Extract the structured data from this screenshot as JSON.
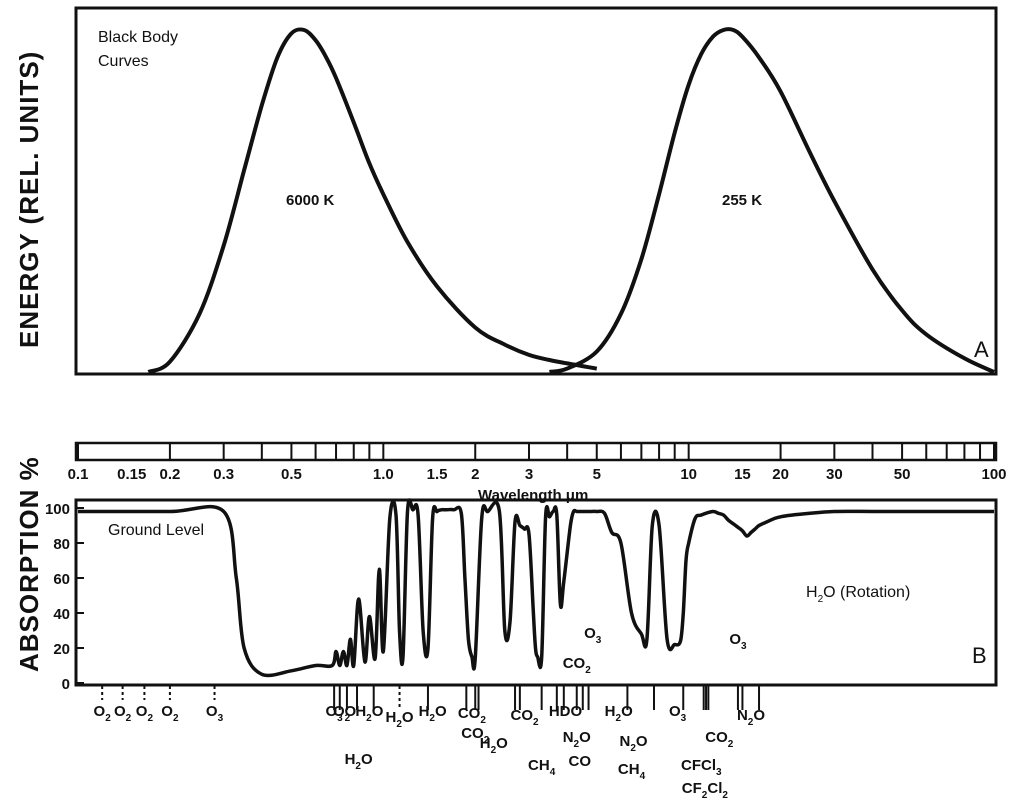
{
  "chart_data": [
    {
      "type": "line",
      "panel_label": "A",
      "ylabel": "ENERGY (REL. UNITS)",
      "annotation_lines": [
        "Black Body",
        "Curves"
      ],
      "x_scale": "log",
      "xlim": [
        0.1,
        100
      ],
      "ylim": [
        0,
        1
      ],
      "series": [
        {
          "name": "6000 K",
          "x": [
            0.17,
            0.2,
            0.25,
            0.3,
            0.35,
            0.4,
            0.45,
            0.5,
            0.55,
            0.6,
            0.65,
            0.7,
            0.8,
            0.9,
            1.0,
            1.2,
            1.5,
            2.0,
            2.5,
            3.0,
            3.5,
            4.0,
            5.0
          ],
          "y": [
            0.0,
            0.03,
            0.17,
            0.37,
            0.59,
            0.78,
            0.92,
            0.99,
            1.0,
            0.97,
            0.92,
            0.86,
            0.73,
            0.61,
            0.52,
            0.38,
            0.25,
            0.13,
            0.08,
            0.05,
            0.035,
            0.025,
            0.01
          ]
        },
        {
          "name": "255 K",
          "x": [
            3.5,
            4.0,
            5.0,
            6.0,
            7.0,
            8.0,
            9.0,
            10.0,
            11.0,
            12.0,
            13.0,
            14.0,
            15.0,
            17.0,
            20.0,
            25.0,
            30.0,
            40.0,
            50.0,
            60.0,
            80.0,
            100.0
          ],
          "y": [
            0.0,
            0.01,
            0.06,
            0.17,
            0.33,
            0.52,
            0.7,
            0.84,
            0.93,
            0.98,
            1.0,
            1.0,
            0.98,
            0.92,
            0.82,
            0.64,
            0.5,
            0.3,
            0.18,
            0.11,
            0.04,
            0.0
          ]
        }
      ]
    },
    {
      "type": "line",
      "panel_label": "B",
      "ylabel": "ABSORPTION %",
      "xlabel": "Wavelength μm",
      "x_scale": "log",
      "xlim": [
        0.1,
        100
      ],
      "ylim": [
        0,
        100
      ],
      "x_ticks": [
        "0.1",
        "0.15",
        "0.2",
        "0.3",
        "0.5",
        "1.0",
        "1.5",
        "2",
        "3",
        "5",
        "10",
        "15",
        "20",
        "30",
        "50",
        "100"
      ],
      "y_ticks": [
        "0",
        "20",
        "40",
        "60",
        "80",
        "100"
      ],
      "annotations": [
        "Ground Level",
        "H2O (Rotation)"
      ],
      "series": [
        {
          "name": "Ground Level",
          "x": [
            0.1,
            0.2,
            0.3,
            0.33,
            0.35,
            0.4,
            0.5,
            0.6,
            0.68,
            0.7,
            0.72,
            0.74,
            0.76,
            0.78,
            0.8,
            0.83,
            0.87,
            0.9,
            0.94,
            0.97,
            1.0,
            1.05,
            1.1,
            1.13,
            1.16,
            1.2,
            1.25,
            1.3,
            1.35,
            1.4,
            1.45,
            1.5,
            1.55,
            1.6,
            1.7,
            1.8,
            1.85,
            1.9,
            1.95,
            2.0,
            2.1,
            2.2,
            2.4,
            2.5,
            2.6,
            2.7,
            2.8,
            2.9,
            3.0,
            3.1,
            3.15,
            3.2,
            3.3,
            3.4,
            3.5,
            3.6,
            3.7,
            3.8,
            3.9,
            4.1,
            4.2,
            4.3,
            4.4,
            4.5,
            4.6,
            4.8,
            5.0,
            5.3,
            5.6,
            6.0,
            6.5,
            7.0,
            7.3,
            7.6,
            8.0,
            8.5,
            9.0,
            9.4,
            9.6,
            9.8,
            10.0,
            10.5,
            11.0,
            12.0,
            12.5,
            13.0,
            13.5,
            14.0,
            14.5,
            15.0,
            15.5,
            16.0,
            16.5,
            17.0,
            18.0,
            20.0,
            25.0,
            30.0,
            40.0,
            50.0,
            70.0,
            100.0
          ],
          "y": [
            98,
            98,
            98,
            60,
            20,
            5,
            7,
            10,
            10,
            18,
            10,
            18,
            10,
            25,
            10,
            48,
            12,
            38,
            14,
            65,
            18,
            94,
            96,
            30,
            15,
            98,
            99,
            96,
            30,
            20,
            94,
            98,
            99,
            99,
            99,
            97,
            60,
            25,
            15,
            14,
            94,
            98,
            98,
            30,
            35,
            92,
            90,
            88,
            85,
            40,
            20,
            15,
            15,
            95,
            95,
            98,
            96,
            45,
            58,
            90,
            98,
            98,
            98,
            98,
            98,
            98,
            98,
            97,
            86,
            80,
            40,
            28,
            25,
            90,
            90,
            25,
            22,
            24,
            40,
            70,
            80,
            94,
            96,
            98,
            97,
            96,
            93,
            91,
            89,
            87,
            84,
            86,
            88,
            90,
            92,
            95,
            97,
            98,
            98,
            98,
            98,
            98
          ]
        }
      ]
    }
  ],
  "gas_labels": {
    "uv_row": [
      "O2",
      "O2",
      "O2",
      "O2",
      "O3"
    ],
    "ir_row": [
      "O3",
      "O2",
      "O",
      "H2O",
      "H2O",
      "H2O",
      "CO2",
      "CO2",
      "CO2",
      "H2O",
      "HDO",
      "N2O",
      "H2O",
      "N2O",
      "O3",
      "CO2",
      "N2O"
    ],
    "ir_row2": [
      "H2O",
      "CH4",
      "CO",
      "CH4",
      "CFCl3",
      "CF2Cl2"
    ],
    "top_row": [
      "CO2",
      "O3",
      "O3"
    ]
  }
}
